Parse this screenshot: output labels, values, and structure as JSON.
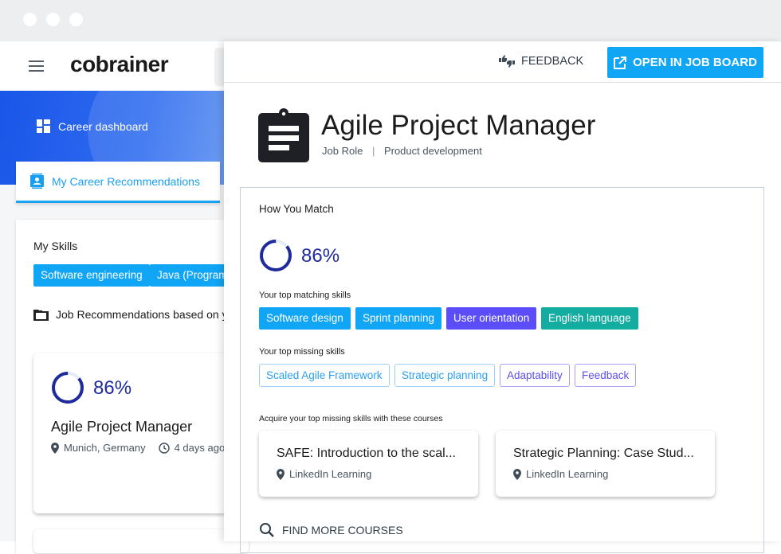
{
  "app": {
    "logo": "cobrainer",
    "colors": {
      "primary": "#10a5f5",
      "ring": "#1f2a9c",
      "purple": "#5b4ef8",
      "teal": "#13aca0"
    }
  },
  "left": {
    "nav": {
      "dashboard": "Career dashboard",
      "recommendations_tab": "My Career Recommendations"
    },
    "skills_title": "My Skills",
    "skills": [
      "Software engineering",
      "Java (Programming language)"
    ],
    "job_recs_title": "Job Recommendations based on your skills",
    "job_card": {
      "match_percent": 86,
      "match_label": "86%",
      "title": "Agile Project Manager",
      "location": "Munich, Germany",
      "posted": "4 days ago"
    }
  },
  "panel": {
    "feedback_label": "FEEDBACK",
    "open_label": "OPEN IN JOB BOARD",
    "title": "Agile Project Manager",
    "type": "Job Role",
    "category": "Product development",
    "match": {
      "title": "How You Match",
      "percent": 86,
      "percent_label": "86%",
      "matching_title": "Your top matching skills",
      "matching": [
        {
          "label": "Software design",
          "color": "#10a5f5"
        },
        {
          "label": "Sprint planning",
          "color": "#10a5f5"
        },
        {
          "label": "User orientation",
          "color": "#5b4ef8"
        },
        {
          "label": "English language",
          "color": "#13aca0"
        }
      ],
      "missing_title": "Your top missing skills",
      "missing": [
        {
          "label": "Scaled Agile Framework",
          "color": "#2aa0f0"
        },
        {
          "label": "Strategic planning",
          "color": "#2aa0f0"
        },
        {
          "label": "Adaptability",
          "color": "#5b4ef0"
        },
        {
          "label": "Feedback",
          "color": "#5b4ef0"
        }
      ],
      "courses_title": "Acquire your top missing skills with these courses",
      "courses": [
        {
          "title": "SAFE: Introduction to the scal...",
          "provider": "LinkedIn Learning"
        },
        {
          "title": "Strategic Planning: Case Stud...",
          "provider": "LinkedIn Learning"
        }
      ],
      "find_more": "FIND MORE COURSES"
    }
  }
}
